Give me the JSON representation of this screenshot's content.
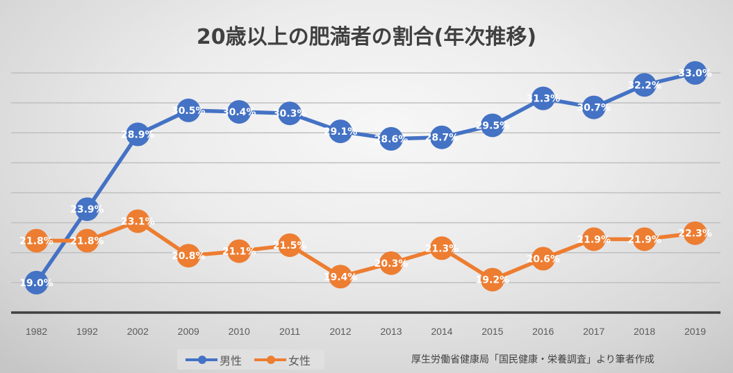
{
  "chart_data": {
    "type": "line",
    "title": "20歳以上の肥満者の割合(年次推移)",
    "xlabel": "",
    "ylabel": "",
    "categories": [
      "1982",
      "1992",
      "2002",
      "2009",
      "2010",
      "2011",
      "2012",
      "2013",
      "2014",
      "2015",
      "2016",
      "2017",
      "2018",
      "2019"
    ],
    "series": [
      {
        "name": "男性",
        "color": "#4472C4",
        "values": [
          19.0,
          23.9,
          28.9,
          30.5,
          30.4,
          30.3,
          29.1,
          28.6,
          28.7,
          29.5,
          31.3,
          30.7,
          32.2,
          33.0
        ],
        "labels": [
          "19.0%",
          "23.9%",
          "28.9%",
          "30.5%",
          "30.4%",
          "30.3%",
          "29.1%",
          "28.6%",
          "28.7%",
          "29.5%",
          "31.3%",
          "30.7%",
          "32.2%",
          "33.0%"
        ]
      },
      {
        "name": "女性",
        "color": "#ED7D31",
        "values": [
          21.8,
          21.8,
          23.1,
          20.8,
          21.1,
          21.5,
          19.4,
          20.3,
          21.3,
          19.2,
          20.6,
          21.9,
          21.9,
          22.3
        ],
        "labels": [
          "21.8%",
          "21.8%",
          "23.1%",
          "20.8%",
          "21.1%",
          "21.5%",
          "19.4%",
          "20.3%",
          "21.3%",
          "19.2%",
          "20.6%",
          "21.9%",
          "21.9%",
          "22.3%"
        ]
      }
    ],
    "ylim": [
      17,
      33
    ],
    "ytick_step": 2,
    "grid": true,
    "legend_position": "bottom-left"
  },
  "source_note": "厚生労働省健康局「国民健康・栄養調査」より筆者作成",
  "colors": {
    "axis": "#404040",
    "grid": "#bfbfbf",
    "title": "#404040"
  }
}
